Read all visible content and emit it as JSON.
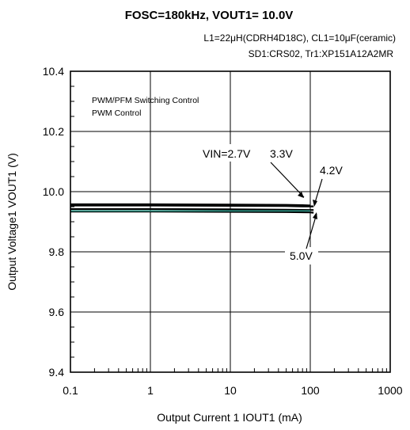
{
  "chart_data": {
    "type": "line",
    "title": "FOSC=180kHz, VOUT1= 10.0V",
    "conditions": [
      "L1=22μH(CDRH4D18C), CL1=10μF(ceramic)",
      "SD1:CRS02, Tr1:XP151A12A2MR"
    ],
    "xlabel": "Output Current 1 IOUT1 (mA)",
    "ylabel": "Output Voltage1  VOUT1 (V)",
    "x_scale": "log",
    "xlim": [
      0.1,
      1000
    ],
    "ylim": [
      9.4,
      10.4
    ],
    "x_ticks": [
      "0.1",
      "1",
      "10",
      "100",
      "1000"
    ],
    "y_ticks": [
      "9.4",
      "9.6",
      "9.8",
      "10.0",
      "10.2",
      "10.4"
    ],
    "grid": true,
    "notes": [
      "PWM/PFM Switching Control",
      "PWM  Control"
    ],
    "series": [
      {
        "name": "VIN=2.7V",
        "color": "#000000",
        "x": [
          0.1,
          1,
          10,
          50,
          80,
          100
        ],
        "y": [
          9.958,
          9.958,
          9.957,
          9.956,
          9.955,
          9.954
        ]
      },
      {
        "name": "3.3V",
        "color": "#000000",
        "x": [
          0.1,
          1,
          10,
          50,
          80,
          100,
          110
        ],
        "y": [
          9.954,
          9.954,
          9.953,
          9.952,
          9.951,
          9.951,
          9.951
        ]
      },
      {
        "name": "4.2V",
        "color": "#000000",
        "x": [
          0.1,
          1,
          10,
          50,
          100,
          110
        ],
        "y": [
          9.942,
          9.942,
          9.941,
          9.94,
          9.939,
          9.939
        ]
      },
      {
        "name": "5.0V",
        "color": "#000000",
        "x": [
          0.1,
          1,
          10,
          50,
          100,
          110
        ],
        "y": [
          9.934,
          9.934,
          9.933,
          9.932,
          9.931,
          9.93
        ]
      },
      {
        "name": "",
        "color": "#2e9a8a",
        "x": [
          0.1,
          1,
          10,
          50,
          100
        ],
        "y": [
          9.936,
          9.936,
          9.936,
          9.936,
          9.936
        ]
      }
    ],
    "annotations": [
      "VIN=2.7V",
      "3.3V",
      "4.2V",
      "5.0V"
    ]
  }
}
